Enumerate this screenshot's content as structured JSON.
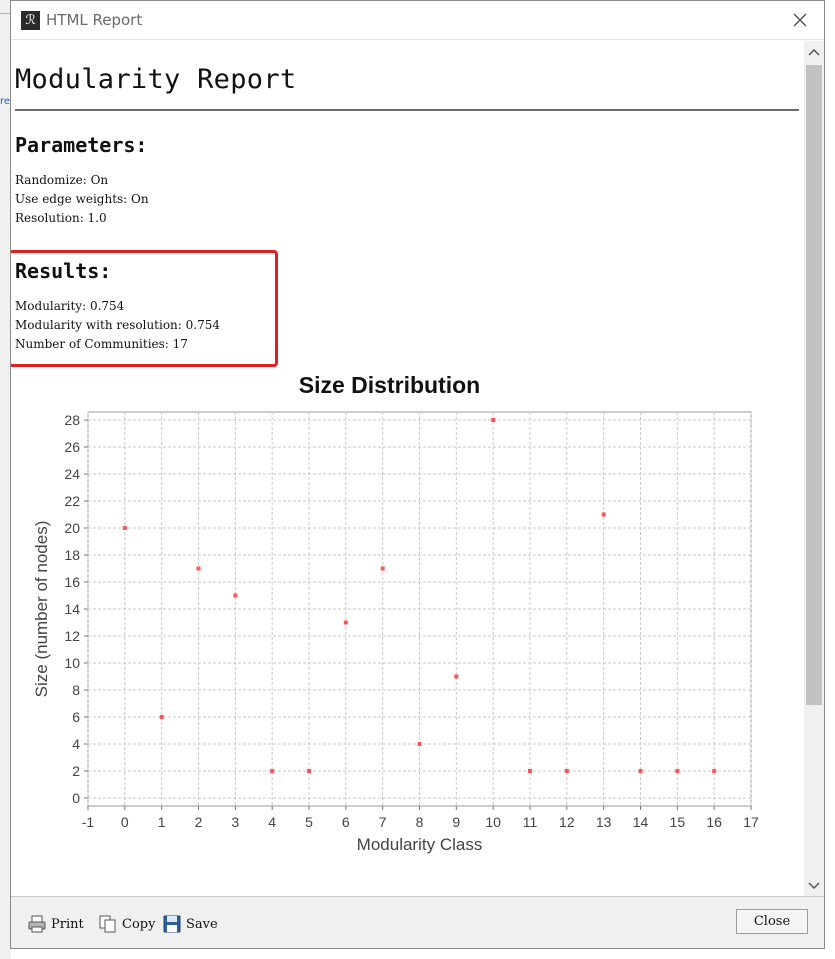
{
  "window": {
    "title": "HTML Report"
  },
  "report": {
    "title": "Modularity Report",
    "parameters": {
      "heading": "Parameters:",
      "lines": [
        "Randomize: On",
        "Use edge weights: On",
        "Resolution: 1.0"
      ]
    },
    "results": {
      "heading": "Results:",
      "lines": [
        "Modularity: 0.754",
        "Modularity with resolution: 0.754",
        "Number of Communities: 17"
      ]
    }
  },
  "chart_data": {
    "type": "scatter",
    "title": "Size Distribution",
    "xlabel": "Modularity Class",
    "ylabel": "Size (number of nodes)",
    "xlim": [
      -1,
      17
    ],
    "ylim": [
      0,
      28
    ],
    "xticks": [
      -1,
      0,
      1,
      2,
      3,
      4,
      5,
      6,
      7,
      8,
      9,
      10,
      11,
      12,
      13,
      14,
      15,
      16,
      17
    ],
    "yticks": [
      0,
      2,
      4,
      6,
      8,
      10,
      12,
      14,
      16,
      18,
      20,
      22,
      24,
      26,
      28
    ],
    "grid": true,
    "point_color": "#ff5555",
    "x": [
      0,
      1,
      2,
      3,
      4,
      5,
      6,
      7,
      8,
      9,
      10,
      11,
      12,
      13,
      14,
      15,
      16
    ],
    "y": [
      20,
      6,
      17,
      15,
      2,
      2,
      13,
      17,
      4,
      9,
      28,
      2,
      2,
      21,
      2,
      2,
      2
    ]
  },
  "toolbar": {
    "print": "Print",
    "copy": "Copy",
    "save": "Save",
    "close": "Close"
  },
  "colors": {
    "highlight": "#e02020",
    "grid": "#c8c8c8"
  }
}
